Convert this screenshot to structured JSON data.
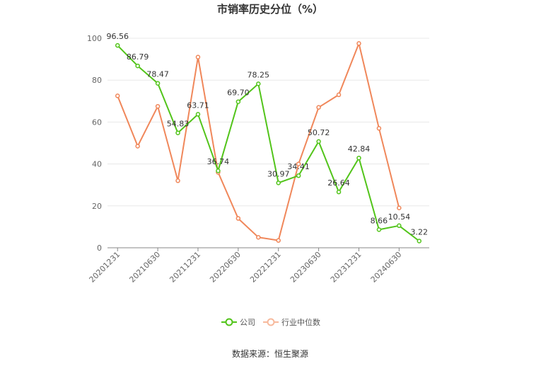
{
  "chart_data": {
    "type": "line",
    "title": "市销率历史分位（%）",
    "x": [
      "20201231",
      "20210331",
      "20210630",
      "20210930",
      "20211231",
      "20220331",
      "20220630",
      "20220930",
      "20221231",
      "20230331",
      "20230630",
      "20230930",
      "20231231",
      "20240331",
      "20240630",
      "20240930"
    ],
    "x_tick_labels": [
      "20201231",
      "20210630",
      "20211231",
      "20220630",
      "20221231",
      "20230630",
      "20231231",
      "20240630"
    ],
    "ylim": [
      0,
      100
    ],
    "y_ticks": [
      0,
      20,
      40,
      60,
      80,
      100
    ],
    "grid": true,
    "legend_position": "bottom",
    "series": [
      {
        "name": "公司",
        "color": "#52c41a",
        "values": [
          96.56,
          86.79,
          78.47,
          54.83,
          63.71,
          36.74,
          69.7,
          78.25,
          30.97,
          34.41,
          50.72,
          26.64,
          42.84,
          8.66,
          10.54,
          3.22
        ],
        "labels": [
          "96.56",
          "86.79",
          "78.47",
          "54.83",
          "63.71",
          "36.74",
          "69.70",
          "78.25",
          "30.97",
          "34.41",
          "50.72",
          "26.64",
          "42.84",
          "8.66",
          "10.54",
          "3.22"
        ]
      },
      {
        "name": "行业中位数",
        "color": "#f0875a",
        "values": [
          72.5,
          48.5,
          67.5,
          32,
          91,
          36,
          14,
          5,
          3.5,
          40,
          67,
          73,
          97.5,
          57,
          19,
          null
        ]
      }
    ]
  },
  "legend": {
    "items": [
      "公司",
      "行业中位数"
    ]
  },
  "source": "数据来源：恒生聚源"
}
